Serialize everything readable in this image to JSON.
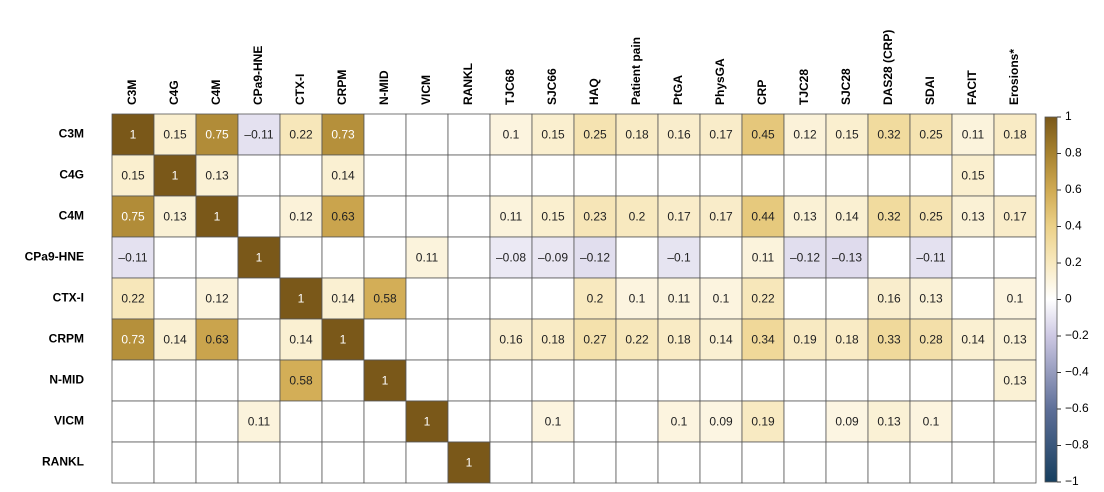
{
  "chart_data": {
    "type": "heatmap",
    "rows": [
      "C3M",
      "C4G",
      "C4M",
      "CPa9-HNE",
      "CTX-I",
      "CRPM",
      "N-MID",
      "VICM",
      "RANKL"
    ],
    "columns": [
      "C3M",
      "C4G",
      "C4M",
      "CPa9-HNE",
      "CTX-I",
      "CRPM",
      "N-MID",
      "VICM",
      "RANKL",
      "TJC68",
      "SJC66",
      "HAQ",
      "Patient pain",
      "PtGA",
      "PhysGA",
      "CRP",
      "TJC28",
      "SJC28",
      "DAS28 (CRP)",
      "SDAI",
      "FACIT",
      "Erosions*"
    ],
    "values": [
      [
        1,
        0.15,
        0.75,
        -0.11,
        0.22,
        0.73,
        null,
        null,
        null,
        0.1,
        0.15,
        0.25,
        0.18,
        0.16,
        0.17,
        0.45,
        0.12,
        0.15,
        0.32,
        0.25,
        0.11,
        0.18
      ],
      [
        0.15,
        1,
        0.13,
        null,
        null,
        0.14,
        null,
        null,
        null,
        null,
        null,
        null,
        null,
        null,
        null,
        null,
        null,
        null,
        null,
        null,
        0.15,
        null
      ],
      [
        0.75,
        0.13,
        1,
        null,
        0.12,
        0.63,
        null,
        null,
        null,
        0.11,
        0.15,
        0.23,
        0.2,
        0.17,
        0.17,
        0.44,
        0.13,
        0.14,
        0.32,
        0.25,
        0.13,
        0.17
      ],
      [
        -0.11,
        null,
        null,
        1,
        null,
        null,
        null,
        0.11,
        null,
        -0.08,
        -0.09,
        -0.12,
        null,
        -0.1,
        null,
        0.11,
        -0.12,
        -0.13,
        null,
        -0.11,
        null,
        null
      ],
      [
        0.22,
        null,
        0.12,
        null,
        1,
        0.14,
        0.58,
        null,
        null,
        null,
        null,
        0.2,
        0.1,
        0.11,
        0.1,
        0.22,
        null,
        null,
        0.16,
        0.13,
        null,
        0.1
      ],
      [
        0.73,
        0.14,
        0.63,
        null,
        0.14,
        1,
        null,
        null,
        null,
        0.16,
        0.18,
        0.27,
        0.22,
        0.18,
        0.14,
        0.34,
        0.19,
        0.18,
        0.33,
        0.28,
        0.14,
        0.13
      ],
      [
        null,
        null,
        null,
        null,
        0.58,
        null,
        1,
        null,
        null,
        null,
        null,
        null,
        null,
        null,
        null,
        null,
        null,
        null,
        null,
        null,
        null,
        0.13
      ],
      [
        null,
        null,
        null,
        0.11,
        null,
        null,
        null,
        1,
        null,
        null,
        0.1,
        null,
        null,
        0.1,
        0.09,
        0.19,
        null,
        0.09,
        0.13,
        0.1,
        null,
        null
      ],
      [
        null,
        null,
        null,
        null,
        null,
        null,
        null,
        null,
        1,
        null,
        null,
        null,
        null,
        null,
        null,
        null,
        null,
        null,
        null,
        null,
        null,
        null
      ]
    ],
    "value_labels": [
      [
        "1",
        "0.15",
        "0.75",
        "–0.11",
        "0.22",
        "0.73",
        null,
        null,
        null,
        "0.1",
        "0.15",
        "0.25",
        "0.18",
        "0.16",
        "0.17",
        "0.45",
        "0.12",
        "0.15",
        "0.32",
        "0.25",
        "0.11",
        "0.18"
      ],
      [
        "0.15",
        "1",
        "0.13",
        null,
        null,
        "0.14",
        null,
        null,
        null,
        null,
        null,
        null,
        null,
        null,
        null,
        null,
        null,
        null,
        null,
        null,
        "0.15",
        null
      ],
      [
        "0.75",
        "0.13",
        "1",
        null,
        "0.12",
        "0.63",
        null,
        null,
        null,
        "0.11",
        "0.15",
        "0.23",
        "0.2",
        "0.17",
        "0.17",
        "0.44",
        "0.13",
        "0.14",
        "0.32",
        "0.25",
        "0.13",
        "0.17"
      ],
      [
        "–0.11",
        null,
        null,
        "1",
        null,
        null,
        null,
        "0.11",
        null,
        "–0.08",
        "–0.09",
        "–0.12",
        null,
        "–0.1",
        null,
        "0.11",
        "–0.12",
        "–0.13",
        null,
        "–0.11",
        null,
        null
      ],
      [
        "0.22",
        null,
        "0.12",
        null,
        "1",
        "0.14",
        "0.58",
        null,
        null,
        null,
        null,
        "0.2",
        "0.1",
        "0.11",
        "0.1",
        "0.22",
        null,
        null,
        "0.16",
        "0.13",
        null,
        "0.1"
      ],
      [
        "0.73",
        "0.14",
        "0.63",
        null,
        "0.14",
        "1",
        null,
        null,
        null,
        "0.16",
        "0.18",
        "0.27",
        "0.22",
        "0.18",
        "0.14",
        "0.34",
        "0.19",
        "0.18",
        "0.33",
        "0.28",
        "0.14",
        "0.13"
      ],
      [
        null,
        null,
        null,
        null,
        "0.58",
        null,
        "1",
        null,
        null,
        null,
        null,
        null,
        null,
        null,
        null,
        null,
        null,
        null,
        null,
        null,
        null,
        "0.13"
      ],
      [
        null,
        null,
        null,
        "0.11",
        null,
        null,
        null,
        "1",
        null,
        null,
        "0.1",
        null,
        null,
        "0.1",
        "0.09",
        "0.19",
        null,
        "0.09",
        "0.13",
        "0.1",
        null,
        null
      ],
      [
        null,
        null,
        null,
        null,
        null,
        null,
        null,
        null,
        "1",
        null,
        null,
        null,
        null,
        null,
        null,
        null,
        null,
        null,
        null,
        null,
        null,
        null
      ]
    ],
    "colorscale": [
      [
        -1,
        "#173f5f"
      ],
      [
        -0.6,
        "#5e6f98"
      ],
      [
        -0.2,
        "#cdc8e3"
      ],
      [
        0,
        "#ffffff"
      ],
      [
        0.2,
        "#f8e9bf"
      ],
      [
        0.4,
        "#ecd188"
      ],
      [
        0.6,
        "#d0aa52"
      ],
      [
        0.8,
        "#a7822f"
      ],
      [
        1,
        "#7a5819"
      ]
    ],
    "clim": [
      -1,
      1
    ],
    "cticks": [
      {
        "value": -1,
        "label": "−1"
      },
      {
        "value": -0.8,
        "label": "−0.8"
      },
      {
        "value": -0.6,
        "label": "−0.6"
      },
      {
        "value": -0.4,
        "label": "−0.4"
      },
      {
        "value": -0.2,
        "label": "−0.2"
      },
      0,
      0.2,
      0.4,
      0.6,
      0.8,
      1
    ]
  }
}
